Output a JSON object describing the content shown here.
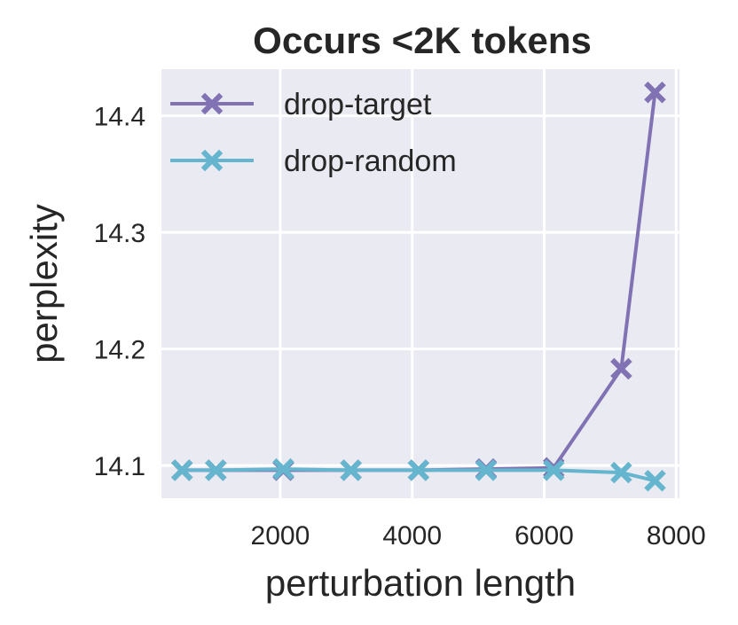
{
  "chart_data": {
    "type": "line",
    "title": "Occurs <2K tokens",
    "xlabel": "perturbation length",
    "ylabel": "perplexity",
    "xlim": [
      200,
      8050
    ],
    "ylim": [
      14.072,
      14.44
    ],
    "xticks": [
      2000,
      4000,
      6000,
      8000
    ],
    "yticks": [
      14.1,
      14.2,
      14.3,
      14.4
    ],
    "xtick_labels": [
      "2000",
      "4000",
      "6000",
      "8000"
    ],
    "ytick_labels": [
      "14.1",
      "14.2",
      "14.3",
      "14.4"
    ],
    "grid": true,
    "legend_position": "upper-left",
    "background_color": "#eaeaf2",
    "series": [
      {
        "name": "drop-target",
        "color": "#8172b3",
        "marker": "x",
        "x": [
          512,
          1024,
          2048,
          3072,
          4096,
          5120,
          6144,
          7168,
          7680
        ],
        "y": [
          14.096,
          14.096,
          14.096,
          14.096,
          14.096,
          14.097,
          14.098,
          14.183,
          14.42
        ]
      },
      {
        "name": "drop-random",
        "color": "#64b5cd",
        "marker": "x",
        "x": [
          512,
          1024,
          2048,
          3072,
          4096,
          5120,
          6144,
          7168,
          7680
        ],
        "y": [
          14.096,
          14.096,
          14.097,
          14.096,
          14.096,
          14.096,
          14.096,
          14.094,
          14.087
        ]
      }
    ]
  }
}
